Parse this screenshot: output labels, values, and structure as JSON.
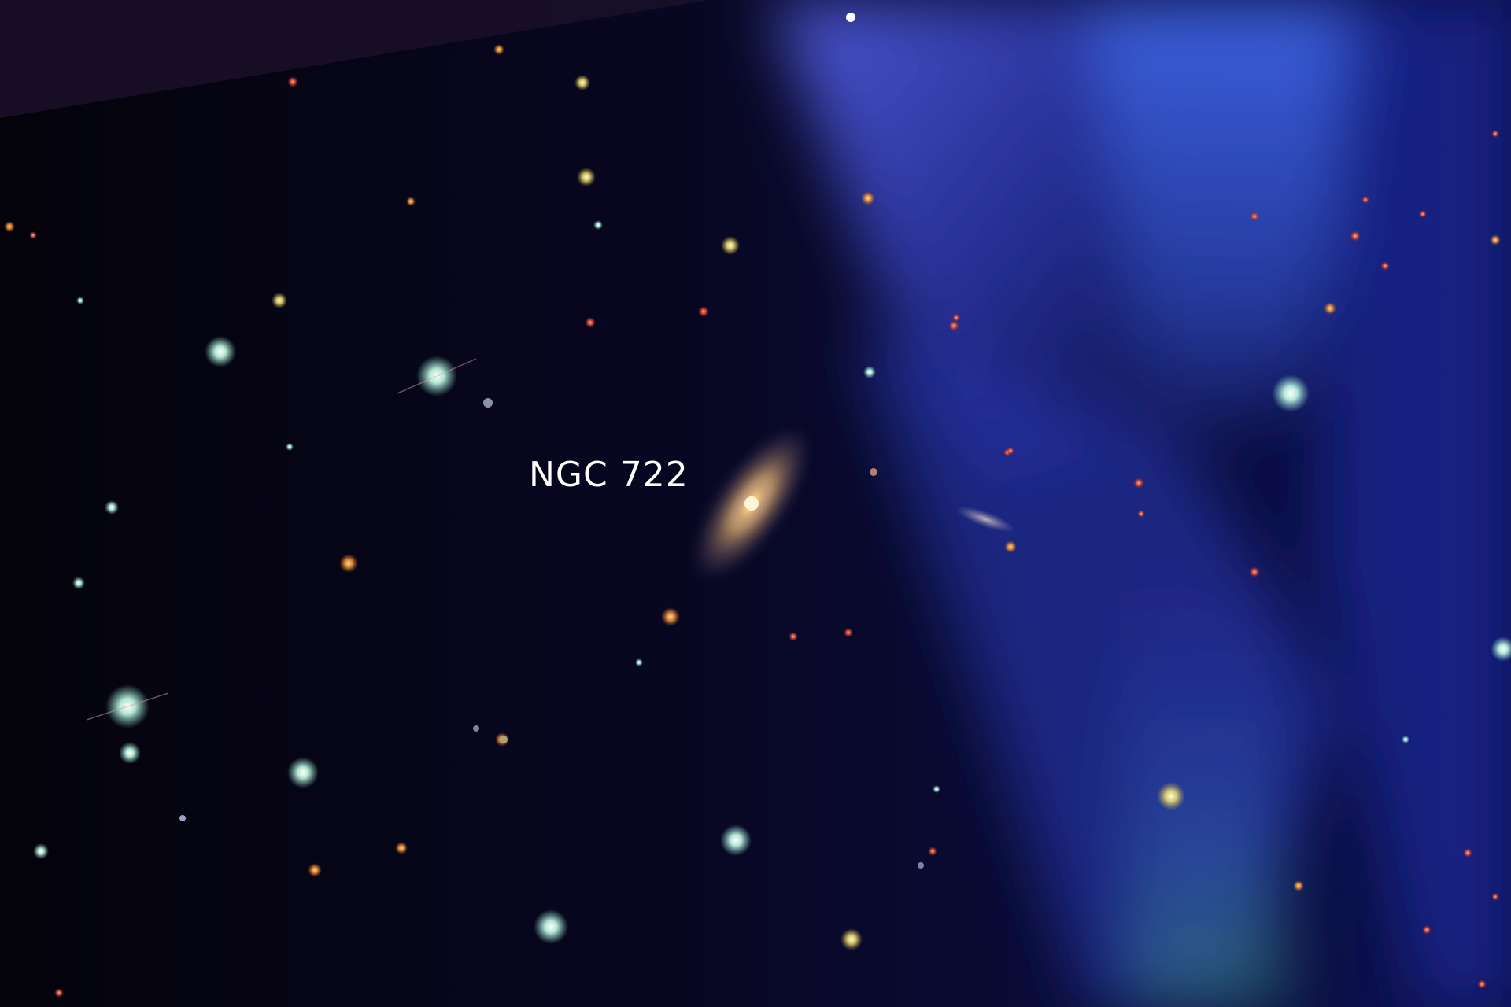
{
  "image": {
    "type": "astronomical survey image",
    "background_color": "#05040f",
    "glow_color": "#4a5bdc"
  },
  "labels": {
    "galaxy_label": "NGC 722"
  }
}
